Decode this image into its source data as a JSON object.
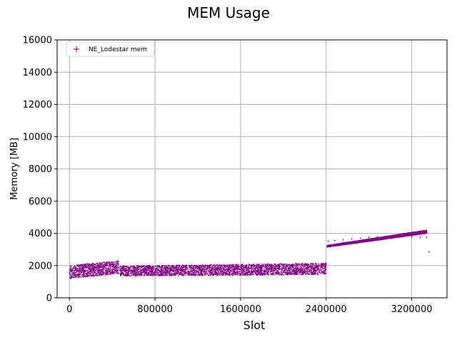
{
  "chart_data": {
    "type": "scatter",
    "title": "MEM Usage",
    "xlabel": "Slot",
    "ylabel": "Memory [MB]",
    "xlim": [
      -115000,
      3530000
    ],
    "ylim": [
      0,
      16000
    ],
    "xticks": [
      0,
      800000,
      1600000,
      2400000,
      3200000
    ],
    "xtick_labels": [
      "0",
      "800000",
      "1600000",
      "2400000",
      "3200000"
    ],
    "yticks": [
      0,
      2000,
      4000,
      6000,
      8000,
      10000,
      12000,
      14000,
      16000
    ],
    "ytick_labels": [
      "0",
      "2000",
      "4000",
      "6000",
      "8000",
      "10000",
      "12000",
      "14000",
      "16000"
    ],
    "grid": true,
    "legend_position": "upper-left",
    "series": [
      {
        "name": "NE_Lodestar mem",
        "marker": "+",
        "color": "#800080",
        "points": [
          [
            10000,
            1200
          ],
          [
            20000,
            1250
          ],
          [
            30000,
            1300
          ],
          [
            50000,
            1400
          ],
          [
            70000,
            1450
          ],
          [
            90000,
            1500
          ],
          [
            110000,
            1550
          ],
          [
            130000,
            1600
          ],
          [
            150000,
            1650
          ],
          [
            170000,
            1700
          ],
          [
            200000,
            1750
          ],
          [
            230000,
            1800
          ],
          [
            260000,
            1850
          ],
          [
            290000,
            1900
          ],
          [
            320000,
            1950
          ],
          [
            350000,
            2000
          ],
          [
            380000,
            2050
          ],
          [
            410000,
            2000
          ],
          [
            440000,
            1950
          ],
          [
            460000,
            1900
          ],
          [
            480000,
            1380
          ],
          [
            550000,
            1400
          ],
          [
            620000,
            1420
          ],
          [
            700000,
            1440
          ],
          [
            780000,
            1460
          ],
          [
            860000,
            1470
          ],
          [
            940000,
            1490
          ],
          [
            1000000,
            1500
          ],
          [
            1080000,
            1530
          ],
          [
            1160000,
            1570
          ],
          [
            1240000,
            1620
          ],
          [
            1320000,
            1680
          ],
          [
            1400000,
            1740
          ],
          [
            1480000,
            1790
          ],
          [
            1560000,
            1830
          ],
          [
            1640000,
            1870
          ],
          [
            1720000,
            1900
          ],
          [
            1800000,
            1940
          ],
          [
            1880000,
            1990
          ],
          [
            1960000,
            2040
          ],
          [
            2040000,
            2070
          ],
          [
            2120000,
            2090
          ],
          [
            2200000,
            2100
          ],
          [
            2280000,
            2110
          ],
          [
            2360000,
            2120
          ],
          [
            2400000,
            2130
          ],
          [
            2420000,
            3500
          ],
          [
            2480000,
            3550
          ],
          [
            2560000,
            3600
          ],
          [
            2640000,
            3650
          ],
          [
            2720000,
            3700
          ],
          [
            2800000,
            3750
          ],
          [
            2880000,
            3780
          ],
          [
            2960000,
            3800
          ],
          [
            3040000,
            3820
          ],
          [
            3120000,
            3800
          ],
          [
            3200000,
            3780
          ],
          [
            3280000,
            3760
          ],
          [
            3340000,
            3750
          ],
          [
            3360000,
            2850
          ]
        ],
        "bands": [
          {
            "x": [
              0,
              460000
            ],
            "y_start": [
              1200,
              2000
            ],
            "y_end": [
              1500,
              2300
            ],
            "density": 900
          },
          {
            "x": [
              470000,
              2400000
            ],
            "y_start": [
              1340,
              1980
            ],
            "y_end": [
              1440,
              2150
            ],
            "density": 3500
          },
          {
            "x": [
              2410000,
              3340000
            ],
            "y_start": [
              3150,
              3250
            ],
            "y_end": [
              4000,
              4200
            ],
            "density": 5200
          }
        ]
      }
    ]
  }
}
